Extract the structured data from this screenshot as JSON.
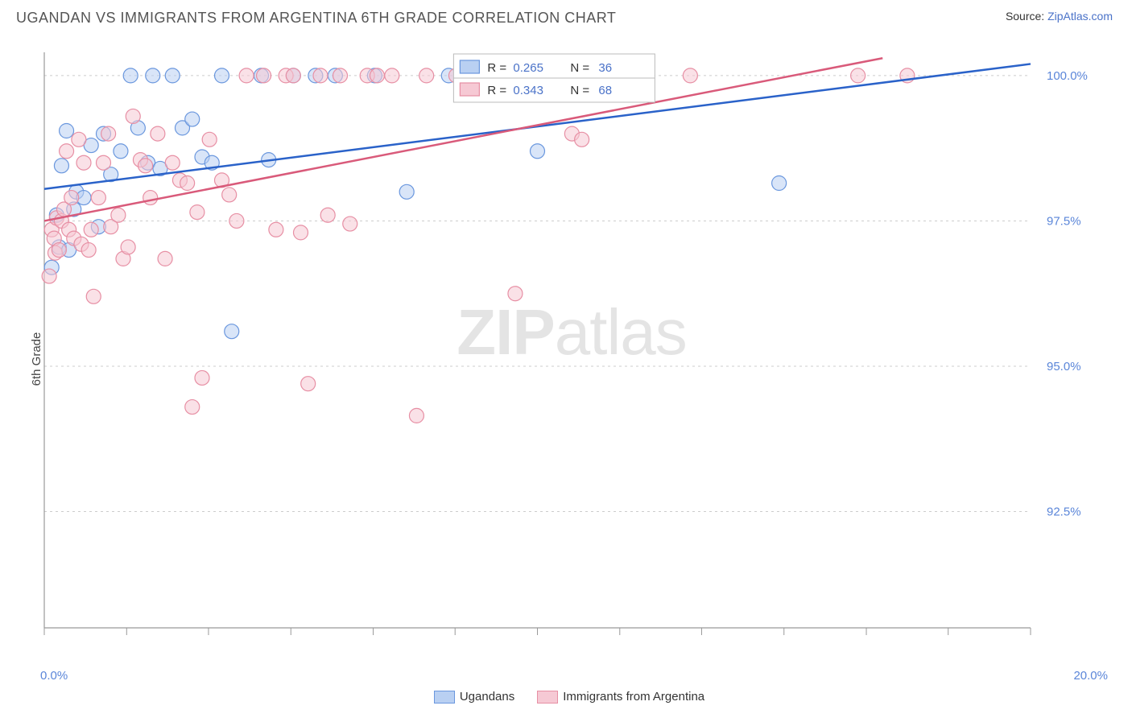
{
  "header": {
    "title": "UGANDAN VS IMMIGRANTS FROM ARGENTINA 6TH GRADE CORRELATION CHART",
    "source_prefix": "Source: ",
    "source_link": "ZipAtlas.com"
  },
  "watermark": {
    "bold": "ZIP",
    "rest": "atlas"
  },
  "chart": {
    "type": "scatter",
    "ylabel": "6th Grade",
    "xlim": [
      0,
      20
    ],
    "ylim": [
      90.5,
      100.4
    ],
    "x_axis_label_min": "0.0%",
    "x_axis_label_max": "20.0%",
    "x_ticks": [
      0,
      1.67,
      3.33,
      5.0,
      6.67,
      8.33,
      10.0,
      11.67,
      13.33,
      15.0,
      16.67,
      18.33,
      20.0
    ],
    "y_ticks": [
      {
        "v": 92.5,
        "label": "92.5%"
      },
      {
        "v": 95.0,
        "label": "95.0%"
      },
      {
        "v": 97.5,
        "label": "97.5%"
      },
      {
        "v": 100.0,
        "label": "100.0%"
      }
    ],
    "grid_color": "#cccccc",
    "axis_color": "#999999",
    "tick_label_color": "#5b86d9",
    "background_color": "#ffffff",
    "marker_radius": 9,
    "marker_opacity": 0.55,
    "legend_box": {
      "border_color": "#bbbbbb",
      "bg": "#ffffff",
      "rows": [
        {
          "swatch_fill": "#b9d0f2",
          "swatch_stroke": "#6a97de",
          "r_label": "R =",
          "r_val": "0.265",
          "n_label": "N =",
          "n_val": "36",
          "val_color": "#4a72c8"
        },
        {
          "swatch_fill": "#f6c9d4",
          "swatch_stroke": "#e78fa4",
          "r_label": "R =",
          "r_val": "0.343",
          "n_label": "N =",
          "n_val": "68",
          "val_color": "#4a72c8"
        }
      ]
    },
    "series": [
      {
        "name": "Ugandans",
        "color_fill": "#b9d0f2",
        "color_stroke": "#6a97de",
        "line_color": "#2a62c9",
        "regression": {
          "x1": 0,
          "y1": 98.05,
          "x2": 20,
          "y2": 100.2
        },
        "points": [
          [
            0.15,
            96.7
          ],
          [
            0.25,
            97.6
          ],
          [
            0.3,
            97.05
          ],
          [
            0.35,
            98.45
          ],
          [
            0.45,
            99.05
          ],
          [
            0.5,
            97.0
          ],
          [
            0.6,
            97.7
          ],
          [
            0.65,
            98.0
          ],
          [
            0.8,
            97.9
          ],
          [
            0.95,
            98.8
          ],
          [
            1.1,
            97.4
          ],
          [
            1.2,
            99.0
          ],
          [
            1.35,
            98.3
          ],
          [
            1.55,
            98.7
          ],
          [
            1.75,
            100.0
          ],
          [
            1.9,
            99.1
          ],
          [
            2.1,
            98.5
          ],
          [
            2.2,
            100.0
          ],
          [
            2.35,
            98.4
          ],
          [
            2.6,
            100.0
          ],
          [
            2.8,
            99.1
          ],
          [
            3.0,
            99.25
          ],
          [
            3.2,
            98.6
          ],
          [
            3.4,
            98.5
          ],
          [
            3.6,
            100.0
          ],
          [
            3.8,
            95.6
          ],
          [
            4.4,
            100.0
          ],
          [
            4.55,
            98.55
          ],
          [
            5.05,
            100.0
          ],
          [
            5.5,
            100.0
          ],
          [
            5.9,
            100.0
          ],
          [
            6.7,
            100.0
          ],
          [
            7.35,
            98.0
          ],
          [
            8.2,
            100.0
          ],
          [
            10.0,
            98.7
          ],
          [
            14.9,
            98.15
          ]
        ]
      },
      {
        "name": "Immigrants from Argentina",
        "color_fill": "#f6c9d4",
        "color_stroke": "#e78fa4",
        "line_color": "#d95a7a",
        "regression": {
          "x1": 0,
          "y1": 97.5,
          "x2": 17.0,
          "y2": 100.3
        },
        "points": [
          [
            0.1,
            96.55
          ],
          [
            0.15,
            97.35
          ],
          [
            0.2,
            97.2
          ],
          [
            0.22,
            96.95
          ],
          [
            0.25,
            97.55
          ],
          [
            0.3,
            97.0
          ],
          [
            0.35,
            97.5
          ],
          [
            0.4,
            97.7
          ],
          [
            0.45,
            98.7
          ],
          [
            0.5,
            97.35
          ],
          [
            0.55,
            97.9
          ],
          [
            0.6,
            97.2
          ],
          [
            0.7,
            98.9
          ],
          [
            0.75,
            97.1
          ],
          [
            0.8,
            98.5
          ],
          [
            0.9,
            97.0
          ],
          [
            0.95,
            97.35
          ],
          [
            1.0,
            96.2
          ],
          [
            1.1,
            97.9
          ],
          [
            1.2,
            98.5
          ],
          [
            1.3,
            99.0
          ],
          [
            1.35,
            97.4
          ],
          [
            1.5,
            97.6
          ],
          [
            1.6,
            96.85
          ],
          [
            1.7,
            97.05
          ],
          [
            1.8,
            99.3
          ],
          [
            1.95,
            98.55
          ],
          [
            2.05,
            98.45
          ],
          [
            2.15,
            97.9
          ],
          [
            2.3,
            99.0
          ],
          [
            2.45,
            96.85
          ],
          [
            2.6,
            98.5
          ],
          [
            2.75,
            98.2
          ],
          [
            2.9,
            98.15
          ],
          [
            3.0,
            94.3
          ],
          [
            3.1,
            97.65
          ],
          [
            3.2,
            94.8
          ],
          [
            3.35,
            98.9
          ],
          [
            3.6,
            98.2
          ],
          [
            3.75,
            97.95
          ],
          [
            3.9,
            97.5
          ],
          [
            4.1,
            100.0
          ],
          [
            4.45,
            100.0
          ],
          [
            4.7,
            97.35
          ],
          [
            4.9,
            100.0
          ],
          [
            5.05,
            100.0
          ],
          [
            5.2,
            97.3
          ],
          [
            5.35,
            94.7
          ],
          [
            5.6,
            100.0
          ],
          [
            5.75,
            97.6
          ],
          [
            6.0,
            100.0
          ],
          [
            6.2,
            97.45
          ],
          [
            6.55,
            100.0
          ],
          [
            6.75,
            100.0
          ],
          [
            7.05,
            100.0
          ],
          [
            7.55,
            94.15
          ],
          [
            7.75,
            100.0
          ],
          [
            8.35,
            100.0
          ],
          [
            8.6,
            100.0
          ],
          [
            9.25,
            100.0
          ],
          [
            9.55,
            96.25
          ],
          [
            10.7,
            99.0
          ],
          [
            10.9,
            98.9
          ],
          [
            11.3,
            100.0
          ],
          [
            12.05,
            100.0
          ],
          [
            13.1,
            100.0
          ],
          [
            16.5,
            100.0
          ],
          [
            17.5,
            100.0
          ]
        ]
      }
    ],
    "bottom_legend": [
      {
        "swatch_fill": "#b9d0f2",
        "swatch_stroke": "#6a97de",
        "label": "Ugandans"
      },
      {
        "swatch_fill": "#f6c9d4",
        "swatch_stroke": "#e78fa4",
        "label": "Immigrants from Argentina"
      }
    ]
  }
}
